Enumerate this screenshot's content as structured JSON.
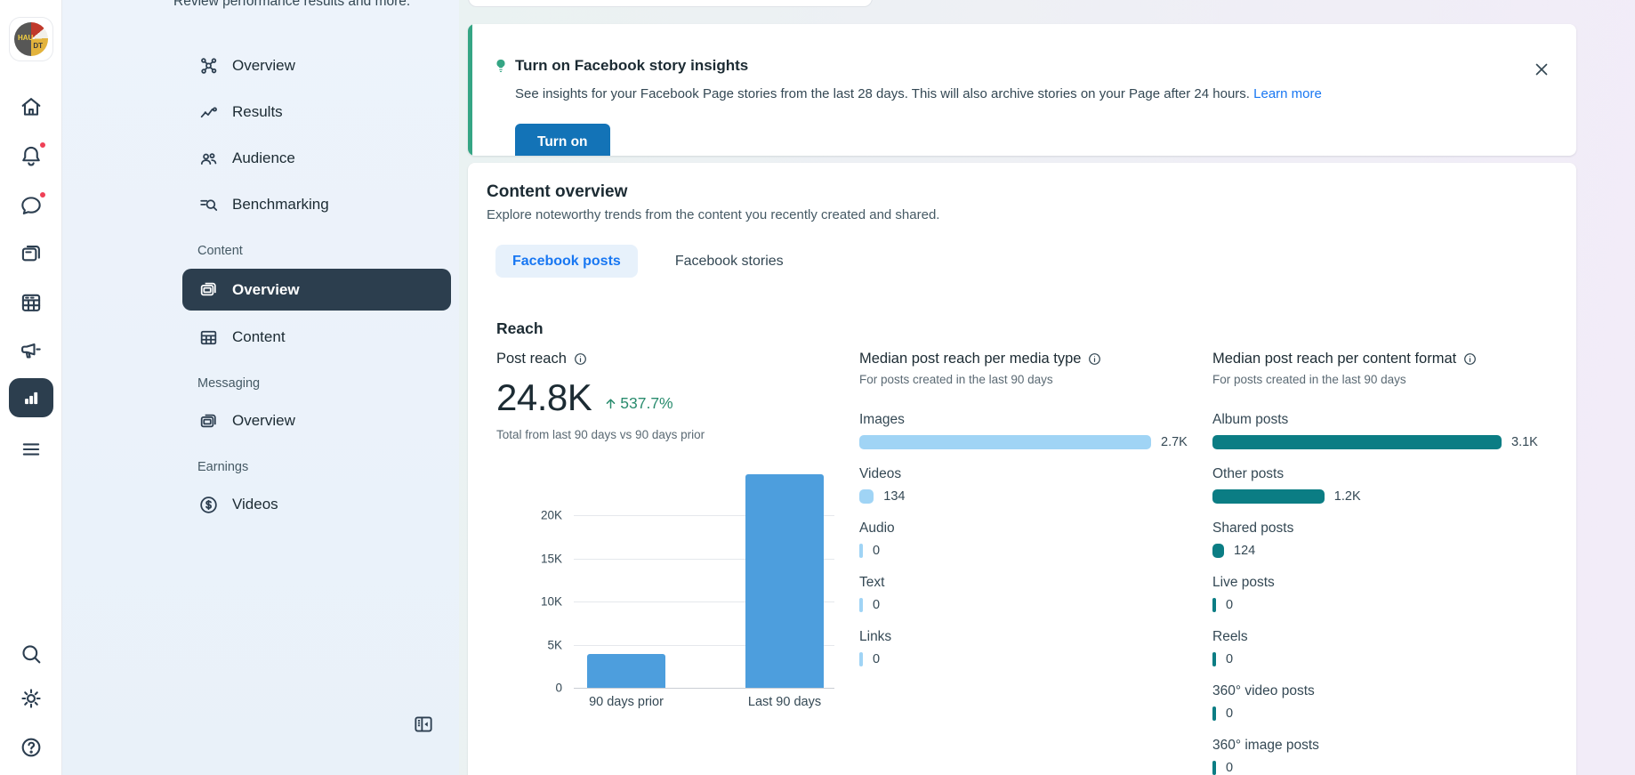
{
  "rail": {
    "logo": {
      "top": "HAU",
      "bottom": "DT"
    },
    "items": [
      {
        "name": "home"
      },
      {
        "name": "notifications",
        "badge": true
      },
      {
        "name": "messages",
        "badge": true
      },
      {
        "name": "posts"
      },
      {
        "name": "planner"
      },
      {
        "name": "ads"
      },
      {
        "name": "insights",
        "selected": true
      },
      {
        "name": "menu"
      }
    ],
    "bottom_items": [
      {
        "name": "search"
      },
      {
        "name": "settings"
      },
      {
        "name": "help"
      }
    ]
  },
  "sidebar": {
    "intro": "Review performance results and more.",
    "items": [
      {
        "label": "Overview"
      },
      {
        "label": "Results"
      },
      {
        "label": "Audience"
      },
      {
        "label": "Benchmarking"
      }
    ],
    "sections": [
      {
        "label": "Content",
        "items": [
          {
            "label": "Overview",
            "selected": true
          },
          {
            "label": "Content"
          }
        ]
      },
      {
        "label": "Messaging",
        "items": [
          {
            "label": "Overview"
          }
        ]
      },
      {
        "label": "Earnings",
        "items": [
          {
            "label": "Videos"
          }
        ]
      }
    ]
  },
  "banner": {
    "title": "Turn on Facebook story insights",
    "body": "See insights for your Facebook Page stories from the last 28 days. This will also archive stories on your Page after 24 hours.",
    "link_label": "Learn more",
    "button_label": "Turn on",
    "accent_color": "#35a584"
  },
  "content": {
    "title": "Content overview",
    "subtitle": "Explore noteworthy trends from the content you recently created and shared.",
    "tabs": [
      {
        "label": "Facebook posts",
        "active": true
      },
      {
        "label": "Facebook stories",
        "active": false
      }
    ],
    "section_heading": "Reach"
  },
  "chart_data": [
    {
      "type": "bar",
      "title": "Post reach",
      "total": "24.8K",
      "change": "537.7%",
      "change_direction": "up",
      "change_color": "#2a8c6e",
      "caption": "Total from last 90 days vs 90 days prior",
      "categories": [
        "90 days prior",
        "Last 90 days"
      ],
      "values": [
        3900,
        24800
      ],
      "ylim": [
        0,
        25300
      ],
      "yticks": [
        {
          "label": "20K",
          "value": 20000
        },
        {
          "label": "15K",
          "value": 15000
        },
        {
          "label": "10K",
          "value": 10000
        },
        {
          "label": "5K",
          "value": 5000
        },
        {
          "label": "0",
          "value": 0
        }
      ],
      "grid": true,
      "color": "#4d9edd"
    },
    {
      "type": "bar",
      "orientation": "horizontal",
      "title": "Median post reach per media type",
      "subtitle": "For posts created in the last 90 days",
      "categories": [
        "Images",
        "Videos",
        "Audio",
        "Text",
        "Links"
      ],
      "values": [
        2700,
        134,
        0,
        0,
        0
      ],
      "value_labels": [
        "2.7K",
        "134",
        "0",
        "0",
        "0"
      ],
      "color": "#a0d4f5"
    },
    {
      "type": "bar",
      "orientation": "horizontal",
      "title": "Median post reach per content format",
      "subtitle": "For posts created in the last 90 days",
      "categories": [
        "Album posts",
        "Other posts",
        "Shared posts",
        "Live posts",
        "Reels",
        "360° video posts",
        "360° image posts"
      ],
      "values": [
        3100,
        1200,
        124,
        0,
        0,
        0,
        0
      ],
      "value_labels": [
        "3.1K",
        "1.2K",
        "124",
        "0",
        "0",
        "0",
        "0"
      ],
      "color": "#0b7d84"
    }
  ]
}
